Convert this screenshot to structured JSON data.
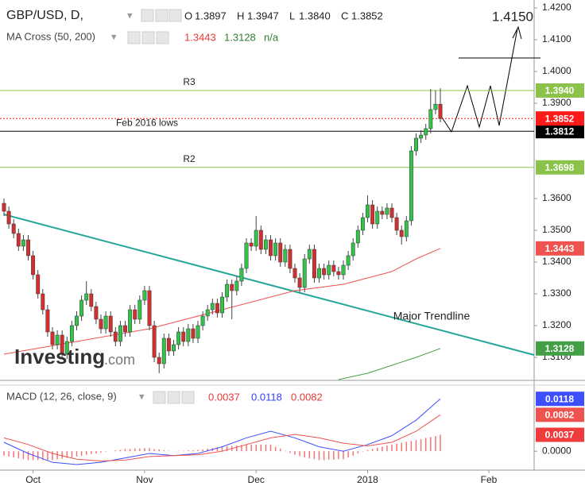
{
  "header": {
    "symbol": "GBP/USD, D,",
    "ohlc_letters": [
      "O",
      "H",
      "L",
      "C"
    ],
    "indicator": "MA Cross (50, 200)",
    "na": "n/a",
    "macd_title": "MACD (12, 26, close, 9)"
  },
  "chart_data": [
    {
      "type": "candlestick",
      "up_color": "#33c24a",
      "down_color": "#d32f2f",
      "xlim": [
        -0.82,
        109.34
      ],
      "ylim": [
        1.303,
        1.4225
      ],
      "yticks": [
        {
          "value": 1.42,
          "label": "1.4200"
        },
        {
          "value": 1.41,
          "label": "1.4100"
        },
        {
          "value": 1.4,
          "label": "1.4000"
        },
        {
          "value": 1.39,
          "label": "1.3900"
        },
        {
          "value": 1.36,
          "label": "1.3600"
        },
        {
          "value": 1.35,
          "label": "1.3500"
        },
        {
          "value": 1.34,
          "label": "1.3400"
        },
        {
          "value": 1.33,
          "label": "1.3300"
        },
        {
          "value": 1.32,
          "label": "1.3200"
        },
        {
          "value": 1.31,
          "label": "1.3100"
        }
      ],
      "ohlc_labels": [
        "1.3897",
        "1.3947",
        "1.3840",
        "1.3852"
      ],
      "ohlc": [
        [
          1.3585,
          1.36,
          1.3545,
          1.356
        ],
        [
          1.356,
          1.3575,
          1.3505,
          1.352
        ],
        [
          1.352,
          1.3535,
          1.3475,
          1.349
        ],
        [
          1.349,
          1.3505,
          1.3435,
          1.345
        ],
        [
          1.345,
          1.3485,
          1.3435,
          1.347
        ],
        [
          1.347,
          1.3485,
          1.3405,
          1.342
        ],
        [
          1.342,
          1.3435,
          1.3345,
          1.336
        ],
        [
          1.336,
          1.3375,
          1.3285,
          1.33
        ],
        [
          1.33,
          1.3315,
          1.3235,
          1.325
        ],
        [
          1.325,
          1.3265,
          1.3165,
          1.318
        ],
        [
          1.318,
          1.3195,
          1.3125,
          1.314
        ],
        [
          1.314,
          1.3185,
          1.3125,
          1.317
        ],
        [
          1.317,
          1.3185,
          1.3095,
          1.311
        ],
        [
          1.311,
          1.3165,
          1.3095,
          1.315
        ],
        [
          1.315,
          1.3215,
          1.3135,
          1.32
        ],
        [
          1.32,
          1.3245,
          1.3185,
          1.323
        ],
        [
          1.323,
          1.3295,
          1.3215,
          1.328
        ],
        [
          1.328,
          1.334,
          1.3265,
          1.33
        ],
        [
          1.33,
          1.3315,
          1.3245,
          1.326
        ],
        [
          1.326,
          1.3275,
          1.3205,
          1.322
        ],
        [
          1.322,
          1.3235,
          1.3175,
          1.319
        ],
        [
          1.319,
          1.3245,
          1.3175,
          1.323
        ],
        [
          1.323,
          1.3245,
          1.3165,
          1.318
        ],
        [
          1.318,
          1.3195,
          1.3135,
          1.315
        ],
        [
          1.315,
          1.3215,
          1.3135,
          1.32
        ],
        [
          1.32,
          1.3215,
          1.3165,
          1.318
        ],
        [
          1.318,
          1.3265,
          1.3165,
          1.325
        ],
        [
          1.325,
          1.3265,
          1.3205,
          1.322
        ],
        [
          1.322,
          1.3295,
          1.3205,
          1.328
        ],
        [
          1.328,
          1.3325,
          1.3265,
          1.331
        ],
        [
          1.331,
          1.3325,
          1.3185,
          1.32
        ],
        [
          1.32,
          1.3215,
          1.3085,
          1.31
        ],
        [
          1.31,
          1.3115,
          1.305,
          1.308
        ],
        [
          1.308,
          1.3175,
          1.3065,
          1.316
        ],
        [
          1.316,
          1.3175,
          1.3105,
          1.312
        ],
        [
          1.312,
          1.3155,
          1.3105,
          1.314
        ],
        [
          1.314,
          1.3195,
          1.3125,
          1.318
        ],
        [
          1.318,
          1.3195,
          1.3135,
          1.315
        ],
        [
          1.315,
          1.3205,
          1.3135,
          1.319
        ],
        [
          1.319,
          1.3205,
          1.3145,
          1.316
        ],
        [
          1.316,
          1.3215,
          1.3145,
          1.32
        ],
        [
          1.32,
          1.3245,
          1.3185,
          1.323
        ],
        [
          1.323,
          1.3265,
          1.3215,
          1.325
        ],
        [
          1.325,
          1.3285,
          1.3235,
          1.327
        ],
        [
          1.327,
          1.3285,
          1.3225,
          1.324
        ],
        [
          1.324,
          1.3305,
          1.3225,
          1.329
        ],
        [
          1.329,
          1.3345,
          1.3275,
          1.333
        ],
        [
          1.333,
          1.3345,
          1.322,
          1.331
        ],
        [
          1.331,
          1.3355,
          1.3295,
          1.334
        ],
        [
          1.334,
          1.3395,
          1.3325,
          1.338
        ],
        [
          1.338,
          1.3475,
          1.3365,
          1.346
        ],
        [
          1.346,
          1.3475,
          1.3435,
          1.345
        ],
        [
          1.345,
          1.3545,
          1.3435,
          1.35
        ],
        [
          1.35,
          1.3515,
          1.3425,
          1.344
        ],
        [
          1.344,
          1.3485,
          1.3425,
          1.347
        ],
        [
          1.347,
          1.3485,
          1.3405,
          1.342
        ],
        [
          1.342,
          1.3475,
          1.3405,
          1.346
        ],
        [
          1.346,
          1.3475,
          1.3385,
          1.34
        ],
        [
          1.34,
          1.3455,
          1.3385,
          1.344
        ],
        [
          1.344,
          1.3455,
          1.3365,
          1.338
        ],
        [
          1.338,
          1.3395,
          1.3335,
          1.335
        ],
        [
          1.335,
          1.3365,
          1.3305,
          1.332
        ],
        [
          1.332,
          1.3425,
          1.3305,
          1.341
        ],
        [
          1.341,
          1.3455,
          1.3395,
          1.344
        ],
        [
          1.344,
          1.3455,
          1.3335,
          1.335
        ],
        [
          1.335,
          1.3395,
          1.3335,
          1.338
        ],
        [
          1.338,
          1.3395,
          1.3345,
          1.336
        ],
        [
          1.336,
          1.3405,
          1.3345,
          1.339
        ],
        [
          1.339,
          1.3405,
          1.3355,
          1.337
        ],
        [
          1.337,
          1.3385,
          1.3345,
          1.336
        ],
        [
          1.336,
          1.3405,
          1.3345,
          1.339
        ],
        [
          1.339,
          1.3435,
          1.3375,
          1.342
        ],
        [
          1.342,
          1.3475,
          1.3405,
          1.346
        ],
        [
          1.346,
          1.3515,
          1.3445,
          1.35
        ],
        [
          1.35,
          1.3555,
          1.3485,
          1.354
        ],
        [
          1.354,
          1.361,
          1.3525,
          1.358
        ],
        [
          1.358,
          1.3595,
          1.3505,
          1.352
        ],
        [
          1.352,
          1.3575,
          1.3505,
          1.356
        ],
        [
          1.356,
          1.3575,
          1.3535,
          1.355
        ],
        [
          1.355,
          1.3585,
          1.3535,
          1.357
        ],
        [
          1.357,
          1.3585,
          1.3525,
          1.354
        ],
        [
          1.354,
          1.3555,
          1.3485,
          1.35
        ],
        [
          1.35,
          1.3515,
          1.3455,
          1.348
        ],
        [
          1.348,
          1.3545,
          1.3465,
          1.353
        ],
        [
          1.353,
          1.3765,
          1.3515,
          1.375
        ],
        [
          1.375,
          1.3805,
          1.3735,
          1.379
        ],
        [
          1.379,
          1.3815,
          1.3775,
          1.38
        ],
        [
          1.38,
          1.3835,
          1.3785,
          1.382
        ],
        [
          1.382,
          1.3945,
          1.3805,
          1.388
        ],
        [
          1.388,
          1.394,
          1.3865,
          1.3897
        ],
        [
          1.3897,
          1.3947,
          1.384,
          1.3852
        ]
      ],
      "series": [
        {
          "color": "#ef5350",
          "x": [
            0,
            15,
            30,
            45,
            60,
            70,
            80,
            85,
            90
          ],
          "values": [
            1.311,
            1.315,
            1.319,
            1.325,
            1.331,
            1.333,
            1.337,
            1.341,
            1.3443
          ]
        },
        {
          "color": "#43a047",
          "x": [
            69,
            75,
            80,
            85,
            90
          ],
          "values": [
            1.303,
            1.305,
            1.3075,
            1.31,
            1.3128
          ]
        }
      ],
      "levels": [
        {
          "name": "R3",
          "value": 1.394,
          "label": "1.3940",
          "color": "#8bc34a"
        },
        {
          "name": "Feb 2016 lows",
          "value": 1.3812,
          "label": "1.3812",
          "color": "#000000"
        },
        {
          "name": "R2",
          "value": 1.3698,
          "label": "1.3698",
          "color": "#8bc34a"
        },
        {
          "value": 1.3852,
          "label": "1.3852",
          "color": "#ff1a1a",
          "dashed": true
        }
      ],
      "target": {
        "value": 1.415,
        "label": "1.4150"
      },
      "annotations": [
        "Major Trendline"
      ],
      "watermark": [
        "Investing",
        ".com"
      ]
    },
    {
      "type": "macd",
      "xlim": [
        -0.82,
        109.34
      ],
      "ylim": [
        -0.0039,
        0.0147
      ],
      "yticks": [
        {
          "value": 0,
          "label": "0.0000"
        }
      ],
      "xticks": [
        {
          "value": 6,
          "label": "Oct"
        },
        {
          "value": 29,
          "label": "Nov"
        },
        {
          "value": 52,
          "label": "Dec"
        },
        {
          "value": 75,
          "label": "2018"
        },
        {
          "value": 100,
          "label": "Feb"
        }
      ],
      "series": [
        {
          "color": "#3d4eff",
          "x": [
            0,
            5,
            10,
            15,
            20,
            25,
            30,
            35,
            40,
            45,
            50,
            55,
            60,
            65,
            70,
            75,
            80,
            85,
            90
          ],
          "values": [
            0.002,
            -0.0005,
            -0.0025,
            -0.003,
            -0.0025,
            -0.0015,
            -0.0005,
            -0.001,
            -0.0005,
            0.001,
            0.003,
            0.0045,
            0.003,
            0.001,
            0.0,
            0.0015,
            0.0035,
            0.007,
            0.0118
          ]
        },
        {
          "color": "#ef5350",
          "x": [
            0,
            5,
            10,
            15,
            20,
            25,
            30,
            35,
            40,
            45,
            50,
            55,
            60,
            65,
            70,
            75,
            80,
            85,
            90
          ],
          "values": [
            0.003,
            0.0015,
            -0.0005,
            -0.0018,
            -0.0022,
            -0.002,
            -0.0012,
            -0.001,
            -0.0008,
            0.0,
            0.0015,
            0.003,
            0.0038,
            0.003,
            0.0018,
            0.0012,
            0.002,
            0.0045,
            0.0082
          ]
        }
      ],
      "histogram": {
        "color": "#ef3b3b",
        "values": [
          -0.001,
          -0.0012,
          -0.0014,
          -0.0016,
          -0.0018,
          -0.002,
          -0.002,
          -0.002,
          -0.002,
          -0.002,
          -0.002,
          -0.0018,
          -0.0017,
          -0.0015,
          -0.0014,
          -0.0012,
          -0.001,
          -0.0008,
          -0.0006,
          -0.0005,
          -0.0003,
          -0.0001,
          0.0,
          0.0002,
          0.0003,
          0.0005,
          0.0005,
          0.0006,
          0.0006,
          0.0007,
          0.0007,
          0.0005,
          0.0004,
          0.0002,
          0.0001,
          0.0,
          0.0001,
          0.0001,
          0.0002,
          0.0002,
          0.0003,
          0.0004,
          0.0006,
          0.0007,
          0.0009,
          0.001,
          0.0011,
          0.0012,
          0.0013,
          0.0014,
          0.0015,
          0.0015,
          0.0015,
          0.0015,
          0.0015,
          0.0015,
          0.001,
          0.0006,
          0.0001,
          -0.0004,
          -0.0008,
          -0.0011,
          -0.0014,
          -0.0016,
          -0.0018,
          -0.002,
          -0.002,
          -0.0019,
          -0.0019,
          -0.0018,
          -0.0018,
          -0.0014,
          -0.001,
          -0.0005,
          -0.0001,
          0.0003,
          0.0005,
          0.0008,
          0.001,
          0.0013,
          0.0015,
          0.0017,
          0.0019,
          0.0021,
          0.0023,
          0.0025,
          0.0027,
          0.003,
          0.0032,
          0.0034,
          0.0037
        ]
      }
    }
  ]
}
